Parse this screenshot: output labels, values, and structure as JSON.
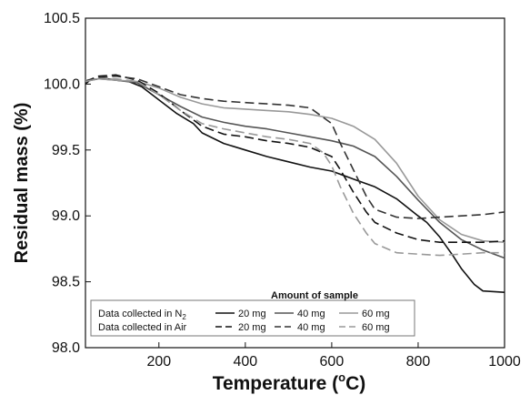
{
  "chart_data": {
    "type": "line",
    "xlabel_main": "Temperature (",
    "xlabel_sup": "o",
    "xlabel_end": "C)",
    "ylabel": "Residual mass (%)",
    "xlim": [
      30,
      1000
    ],
    "ylim": [
      98.0,
      100.5
    ],
    "x_ticks": [
      200,
      400,
      600,
      800,
      1000
    ],
    "x_tick_labels": [
      "200",
      "400",
      "600",
      "800",
      "1000"
    ],
    "y_ticks": [
      98.0,
      98.5,
      99.0,
      99.5,
      100.0,
      100.5
    ],
    "y_tick_labels": [
      "98.0",
      "98.5",
      "99.0",
      "99.5",
      "100.0",
      "100.5"
    ],
    "grid": false,
    "legend": {
      "placement": "bottom-left",
      "title": "Amount of sample",
      "row_labels": [
        "Data collected in N",
        "Data collected in Air"
      ],
      "row_label_sub": [
        "2",
        ""
      ],
      "entries": [
        "20 mg",
        "40 mg",
        "60 mg"
      ]
    },
    "series": [
      {
        "atmosphere": "N2",
        "amount": "20 mg",
        "color": "#111111",
        "dash": "solid",
        "x": [
          30,
          40,
          60,
          80,
          100,
          130,
          160,
          200,
          240,
          280,
          300,
          350,
          400,
          450,
          500,
          550,
          600,
          650,
          700,
          750,
          800,
          820,
          850,
          880,
          900,
          930,
          950,
          1000
        ],
        "y": [
          100.0,
          100.03,
          100.04,
          100.04,
          100.03,
          100.02,
          99.98,
          99.88,
          99.78,
          99.7,
          99.63,
          99.55,
          99.5,
          99.45,
          99.41,
          99.37,
          99.34,
          99.28,
          99.22,
          99.13,
          99.0,
          98.95,
          98.84,
          98.7,
          98.6,
          98.48,
          98.43,
          98.42
        ]
      },
      {
        "atmosphere": "N2",
        "amount": "40 mg",
        "color": "#555555",
        "dash": "solid",
        "x": [
          30,
          60,
          100,
          150,
          200,
          250,
          300,
          350,
          400,
          450,
          500,
          550,
          600,
          650,
          700,
          750,
          800,
          850,
          900,
          950,
          1000
        ],
        "y": [
          100.02,
          100.04,
          100.03,
          100.01,
          99.92,
          99.83,
          99.75,
          99.71,
          99.68,
          99.66,
          99.63,
          99.6,
          99.57,
          99.53,
          99.45,
          99.3,
          99.12,
          98.95,
          98.82,
          98.74,
          98.68
        ]
      },
      {
        "atmosphere": "N2",
        "amount": "60 mg",
        "color": "#999999",
        "dash": "solid",
        "x": [
          30,
          60,
          100,
          150,
          200,
          250,
          300,
          350,
          400,
          450,
          500,
          550,
          600,
          650,
          700,
          750,
          800,
          850,
          900,
          950,
          1000
        ],
        "y": [
          100.03,
          100.04,
          100.03,
          100.02,
          99.97,
          99.9,
          99.85,
          99.82,
          99.81,
          99.8,
          99.79,
          99.77,
          99.74,
          99.68,
          99.58,
          99.4,
          99.15,
          98.97,
          98.86,
          98.81,
          98.8
        ]
      },
      {
        "atmosphere": "Air",
        "amount": "20 mg",
        "color": "#111111",
        "dash": "10,5",
        "x": [
          30,
          60,
          100,
          150,
          200,
          250,
          300,
          350,
          400,
          450,
          500,
          550,
          600,
          620,
          650,
          680,
          700,
          750,
          800,
          850,
          900,
          950,
          1000
        ],
        "y": [
          100.02,
          100.06,
          100.07,
          100.03,
          99.93,
          99.8,
          99.68,
          99.62,
          99.6,
          99.57,
          99.55,
          99.52,
          99.45,
          99.35,
          99.18,
          99.03,
          98.95,
          98.87,
          98.82,
          98.8,
          98.8,
          98.8,
          98.81
        ]
      },
      {
        "atmosphere": "Air",
        "amount": "40 mg",
        "color": "#333333",
        "dash": "10,5",
        "x": [
          30,
          60,
          100,
          150,
          200,
          250,
          300,
          350,
          400,
          450,
          500,
          550,
          600,
          620,
          650,
          680,
          700,
          750,
          800,
          850,
          900,
          950,
          1000
        ],
        "y": [
          100.02,
          100.05,
          100.06,
          100.04,
          99.98,
          99.92,
          99.89,
          99.87,
          99.86,
          99.85,
          99.84,
          99.82,
          99.7,
          99.55,
          99.35,
          99.15,
          99.05,
          98.99,
          98.98,
          98.99,
          99.0,
          99.01,
          99.03
        ]
      },
      {
        "atmosphere": "Air",
        "amount": "60 mg",
        "color": "#999999",
        "dash": "10,5",
        "x": [
          30,
          60,
          100,
          150,
          200,
          250,
          300,
          350,
          400,
          450,
          500,
          550,
          580,
          600,
          620,
          650,
          680,
          700,
          750,
          800,
          850,
          900,
          950,
          1000
        ],
        "y": [
          100.02,
          100.04,
          100.04,
          100.02,
          99.92,
          99.8,
          99.7,
          99.66,
          99.63,
          99.6,
          99.58,
          99.55,
          99.48,
          99.38,
          99.22,
          99.02,
          98.87,
          98.79,
          98.72,
          98.71,
          98.7,
          98.71,
          98.72,
          98.72
        ]
      }
    ]
  }
}
